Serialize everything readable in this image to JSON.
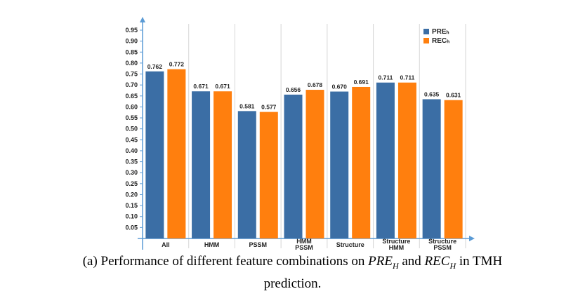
{
  "chart_data": {
    "type": "bar",
    "categories": [
      [
        "All"
      ],
      [
        "HMM"
      ],
      [
        "PSSM"
      ],
      [
        "HMM",
        "PSSM"
      ],
      [
        "Structure"
      ],
      [
        "Structure",
        "HMM"
      ],
      [
        "Structure",
        "PSSM"
      ]
    ],
    "series": [
      {
        "name": "PREₕ",
        "color": "#3B6EA5",
        "values": [
          0.762,
          0.671,
          0.581,
          0.656,
          0.67,
          0.711,
          0.635
        ]
      },
      {
        "name": "RECₕ",
        "color": "#FF7F0E",
        "values": [
          0.772,
          0.671,
          0.577,
          0.678,
          0.691,
          0.711,
          0.631
        ]
      }
    ],
    "data_labels": [
      [
        "0.762",
        "0.671",
        "0.581",
        "0.656",
        "0.670",
        "0.711",
        "0.635"
      ],
      [
        "0.772",
        "0.671",
        "0.577",
        "0.678",
        "0.691",
        "0.711",
        "0.631"
      ]
    ],
    "yticks": [
      "0.05",
      "0.10",
      "0.15",
      "0.20",
      "0.25",
      "0.30",
      "0.35",
      "0.40",
      "0.45",
      "0.50",
      "0.55",
      "0.60",
      "0.65",
      "0.70",
      "0.75",
      "0.80",
      "0.85",
      "0.90",
      "0.95"
    ],
    "ylim": [
      0,
      1.0
    ],
    "grid": "vertical",
    "legend_position": "top-right",
    "title": "",
    "xlabel": "",
    "ylabel": ""
  },
  "caption": {
    "prefix": "(a) Performance of different feature combinations on ",
    "pre_base": "PRE",
    "pre_sub": "H",
    "and": " and ",
    "rec_base": "REC",
    "rec_sub": "H",
    "suffix": " in TMH",
    "line2": "prediction."
  }
}
